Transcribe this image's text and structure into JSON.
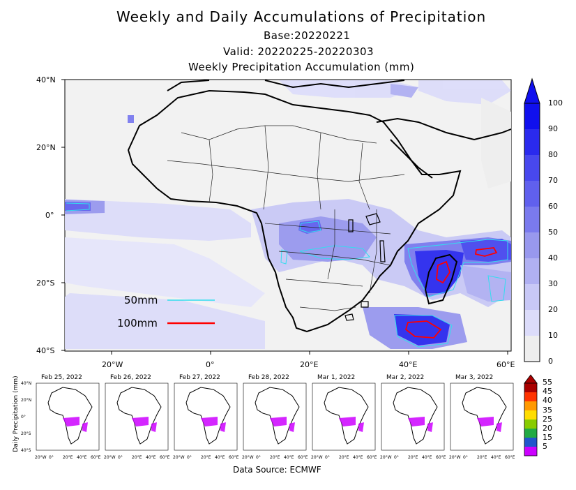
{
  "header": {
    "title": "Weekly and Daily Accumulations of Precipitation",
    "base": "Base:20220221",
    "valid": "Valid: 20220225-20220303",
    "subtitle": "Weekly Precipitation Accumulation (mm)"
  },
  "main_map": {
    "lat_labels": [
      "40°N",
      "20°N",
      "0°",
      "20°S",
      "40°S"
    ],
    "lon_labels": [
      "20°W",
      "0°",
      "20°E",
      "40°E",
      "60°E"
    ],
    "legend": [
      {
        "label": "50mm",
        "color": "#33ddee"
      },
      {
        "label": "100mm",
        "color": "#ff0000"
      }
    ]
  },
  "weekly_colorbar": {
    "labels": [
      "100",
      "90",
      "80",
      "70",
      "60",
      "50",
      "40",
      "30",
      "20",
      "10",
      "0"
    ],
    "colors": [
      "#1010ee",
      "#2a2aee",
      "#4848ee",
      "#6060ee",
      "#7a7aee",
      "#9898ee",
      "#b0b0f2",
      "#c8c8f6",
      "#dcdcfa",
      "#eeeeee"
    ]
  },
  "daily": {
    "ylabel": "Daily Precipitation (mm)",
    "lat_labels": [
      "40°N",
      "20°N",
      "0°",
      "20°S",
      "40°S"
    ],
    "lon_labels": [
      "20°W",
      "0°",
      "20°E",
      "40°E",
      "60°E"
    ],
    "panels": [
      {
        "date": "Feb 25, 2022"
      },
      {
        "date": "Feb 26, 2022"
      },
      {
        "date": "Feb 27, 2022"
      },
      {
        "date": "Feb 28, 2022"
      },
      {
        "date": "Mar 1, 2022"
      },
      {
        "date": "Mar 2, 2022"
      },
      {
        "date": "Mar 3, 2022"
      }
    ]
  },
  "daily_colorbar": {
    "labels": [
      "55",
      "45",
      "40",
      "35",
      "25",
      "20",
      "15",
      "5"
    ],
    "colors": [
      "#aa0000",
      "#ff3300",
      "#ff9900",
      "#ffdd00",
      "#88cc00",
      "#22aa44",
      "#2255cc",
      "#cc00ff"
    ]
  },
  "footer": {
    "source": "Data Source: ECMWF"
  }
}
